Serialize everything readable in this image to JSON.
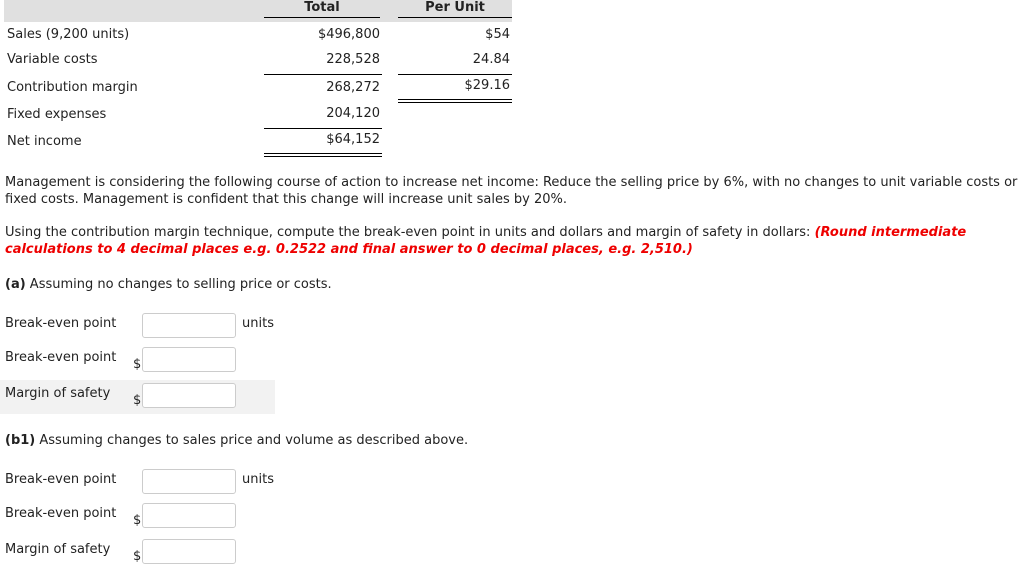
{
  "table": {
    "headers": {
      "total": "Total",
      "per_unit": "Per Unit"
    },
    "rows": [
      {
        "label": "Sales (9,200 units)",
        "total": "$496,800",
        "per_unit": "$54"
      },
      {
        "label": "Variable costs",
        "total": "228,528",
        "per_unit": "24.84"
      },
      {
        "label": "Contribution margin",
        "total": "268,272",
        "per_unit": "$29.16"
      },
      {
        "label": "Fixed expenses",
        "total": "204,120",
        "per_unit": ""
      },
      {
        "label": "Net income",
        "total": "$64,152",
        "per_unit": ""
      }
    ]
  },
  "scenario": "Management is considering the following course of action to increase net income: Reduce the selling price by 6%, with no changes to unit variable costs or fixed costs. Management is confident that this change will increase unit sales by 20%.",
  "instruction": "Using the contribution margin technique, compute the break-even point in units and dollars and margin of safety in dollars:",
  "rounding_note": "(Round intermediate calculations to 4 decimal places e.g. 0.2522 and final answer to 0 decimal places, e.g. 2,510.)",
  "part_a": {
    "tag": "(a)",
    "text": "Assuming no changes to selling price or costs.",
    "fields": [
      {
        "label": "Break-even point",
        "prefix": "",
        "suffix": "units",
        "value": ""
      },
      {
        "label": "Break-even point",
        "prefix": "$",
        "suffix": "",
        "value": ""
      },
      {
        "label": "Margin of safety",
        "prefix": "$",
        "suffix": "",
        "value": ""
      }
    ]
  },
  "part_b1": {
    "tag": "(b1)",
    "text": "Assuming changes to sales price and volume as described above.",
    "fields": [
      {
        "label": "Break-even point",
        "prefix": "",
        "suffix": "units",
        "value": ""
      },
      {
        "label": "Break-even point",
        "prefix": "$",
        "suffix": "",
        "value": ""
      },
      {
        "label": "Margin of safety",
        "prefix": "$",
        "suffix": "",
        "value": ""
      }
    ]
  }
}
